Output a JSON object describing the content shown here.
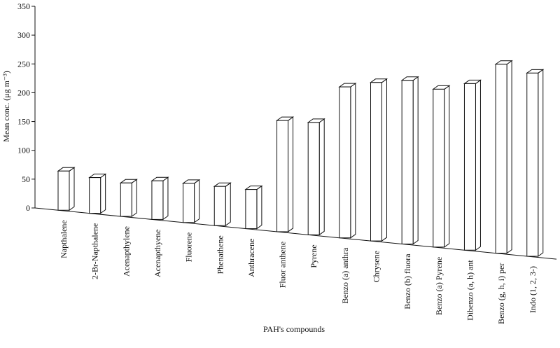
{
  "chart_data": {
    "type": "bar",
    "title": "",
    "xlabel": "PAH's compounds",
    "ylabel": "Mean conc. (μg m⁻³)",
    "ylim": [
      0,
      350
    ],
    "yticks": [
      "0",
      "50",
      "100",
      "150",
      "200",
      "250",
      "300",
      "350"
    ],
    "grid": false,
    "categories": [
      "Napthalene",
      "2-Br-Napthalene",
      "Acenapthylene",
      "Acenapthyene",
      "Fluorene",
      "Phenathene",
      "Anthracene",
      "Fluor anthene",
      "Pyrene",
      "Benzo (a) anthra",
      "Chrysene",
      "Benzo (b) fluora",
      "Benzo (a) Pyrene",
      "Dibenzo (a, h) ant",
      "Benzo (g, h, i) per",
      "Indo (1, 2, 3-)"
    ],
    "values": [
      68,
      62,
      58,
      67,
      68,
      68,
      68,
      193,
      195,
      262,
      275,
      284,
      274,
      289,
      328,
      318
    ]
  }
}
